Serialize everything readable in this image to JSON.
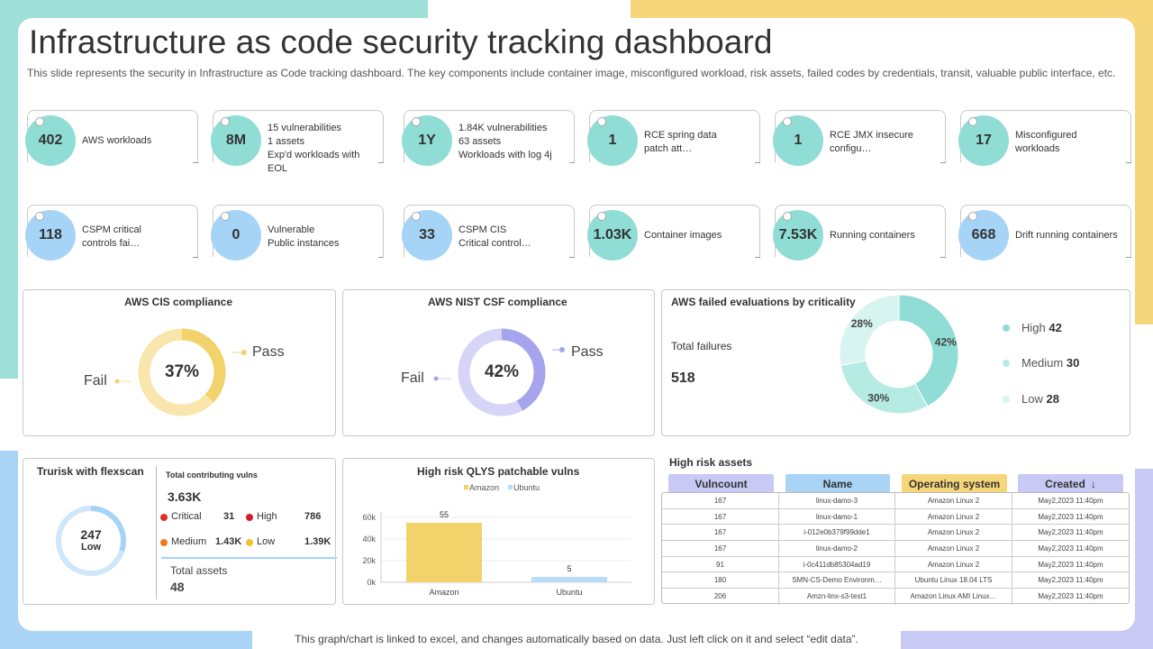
{
  "title": "Infrastructure as code security tracking dashboard",
  "subtitle": "This slide represents the security in Infrastructure as Code tracking dashboard. The key components include container image, misconfigured workload, risk assets, failed codes by credentials, transit, valuable public interface, etc.",
  "footer": "This graph/chart is linked to excel, and changes automatically based on data. Just left click on it and select “edit data”.",
  "kpis_row1": [
    {
      "value": "402",
      "lines": [
        "AWS workloads"
      ]
    },
    {
      "value": "8M",
      "lines": [
        "15 vulnerabilities",
        "1 assets",
        "Exp'd workloads with EOL"
      ]
    },
    {
      "value": "1Y",
      "lines": [
        "1.84K vulnerabilities",
        "63 assets",
        "Workloads with log 4j"
      ]
    },
    {
      "value": "1",
      "lines": [
        "RCE spring data",
        "patch att…"
      ]
    },
    {
      "value": "1",
      "lines": [
        "RCE JMX insecure",
        "configu…"
      ]
    },
    {
      "value": "17",
      "lines": [
        "Misconfigured",
        "workloads"
      ]
    }
  ],
  "kpis_row2": [
    {
      "value": "118",
      "lines": [
        "CSPM critical",
        "controls fai…"
      ]
    },
    {
      "value": "0",
      "lines": [
        "Vulnerable",
        "Public instances"
      ]
    },
    {
      "value": "33",
      "lines": [
        "CSPM CIS",
        "Critical control…"
      ]
    },
    {
      "value": "1.03K",
      "lines": [
        "Container images"
      ]
    },
    {
      "value": "7.53K",
      "lines": [
        "Running containers"
      ]
    },
    {
      "value": "668",
      "lines": [
        "Drift running containers"
      ]
    }
  ],
  "cis": {
    "title": "AWS CIS compliance",
    "center": "37%",
    "pass_label": "Pass",
    "fail_label": "Fail",
    "pass_fraction": 0.37,
    "pass_color": "#f2d36b",
    "fail_color": "#f8e6ad"
  },
  "nist": {
    "title": "AWS NIST CSF compliance",
    "center": "42%",
    "pass_label": "Pass",
    "fail_label": "Fail",
    "pass_fraction": 0.42,
    "pass_color": "#a7a4ee",
    "fail_color": "#d6d5f8"
  },
  "failed": {
    "title": "AWS failed evaluations by criticality",
    "total_label": "Total failures",
    "total_value": "518",
    "chart_data": {
      "type": "pie",
      "categories": [
        "High",
        "Medium",
        "Low"
      ],
      "values": [
        42,
        30,
        28
      ],
      "data_labels": [
        "42%",
        "30%",
        "28%"
      ],
      "legend_values": [
        "42",
        "30",
        "28"
      ],
      "colors": [
        "#8fddd4",
        "#b6ebe4",
        "#d7f4f0"
      ]
    }
  },
  "trurisk": {
    "title": "Trurisk with flexscan",
    "gauge_value": "247",
    "gauge_label": "Low",
    "gauge_fraction": 0.3,
    "vulns_title": "Total contributing vulns",
    "vulns_total": "3.63K",
    "items": [
      {
        "label": "Critical",
        "value": "31",
        "color": "#e0302c"
      },
      {
        "label": "High",
        "value": "786",
        "color": "#d21f2f"
      },
      {
        "label": "Medium",
        "value": "1.43K",
        "color": "#ef7a22"
      },
      {
        "label": "Low",
        "value": "1.39K",
        "color": "#f2c230"
      }
    ],
    "assets_label": "Total assets",
    "assets_value": "48"
  },
  "qlys": {
    "title": "High risk QLYS patchable vulns",
    "chart_data": {
      "type": "bar",
      "categories": [
        "Amazon",
        "Ubuntu"
      ],
      "series": [
        {
          "name": "Amazon",
          "values": [
            55,
            null
          ],
          "color": "#f2d36b"
        },
        {
          "name": "Ubuntu",
          "values": [
            null,
            5
          ],
          "color": "#b9dcf8"
        }
      ],
      "data_labels": [
        "55",
        "5"
      ],
      "yticks": [
        "0k",
        "20k",
        "40k",
        "60k"
      ],
      "ylim": [
        0,
        60
      ]
    }
  },
  "assets_table": {
    "title": "High risk assets",
    "headers": [
      {
        "label": "Vulncount",
        "color": "#c8c9f4"
      },
      {
        "label": "Name",
        "color": "#a9d4f5"
      },
      {
        "label": "Operating system",
        "color": "#f6d67a"
      },
      {
        "label": "Created",
        "color": "#c8c9f4"
      }
    ],
    "rows": [
      [
        "167",
        "linux-damo-3",
        "Amazon Linux 2",
        "May2,2023 11:40pm"
      ],
      [
        "167",
        "linux-damo-1",
        "Amazon Linux 2",
        "May2,2023 11:40pm"
      ],
      [
        "167",
        "i-012e0b379f99dde1",
        "Amazon Linux 2",
        "May2,2023 11:40pm"
      ],
      [
        "167",
        "linux-damo-2",
        "Amazon Linux 2",
        "May2,2023 11:40pm"
      ],
      [
        "91",
        "i-0c411db85304ad19",
        "Amazon Linux 2",
        "May2,2023 11:40pm"
      ],
      [
        "180",
        "SMN-CS-Demo Environm…",
        "Ubuntu Linux 18.04 LTS",
        "May2,2023 11:40pm"
      ],
      [
        "206",
        "Amzn-linx-s3-test1",
        "Amazon Linux AMI Linux…",
        "May2,2023 11:40pm"
      ]
    ]
  }
}
